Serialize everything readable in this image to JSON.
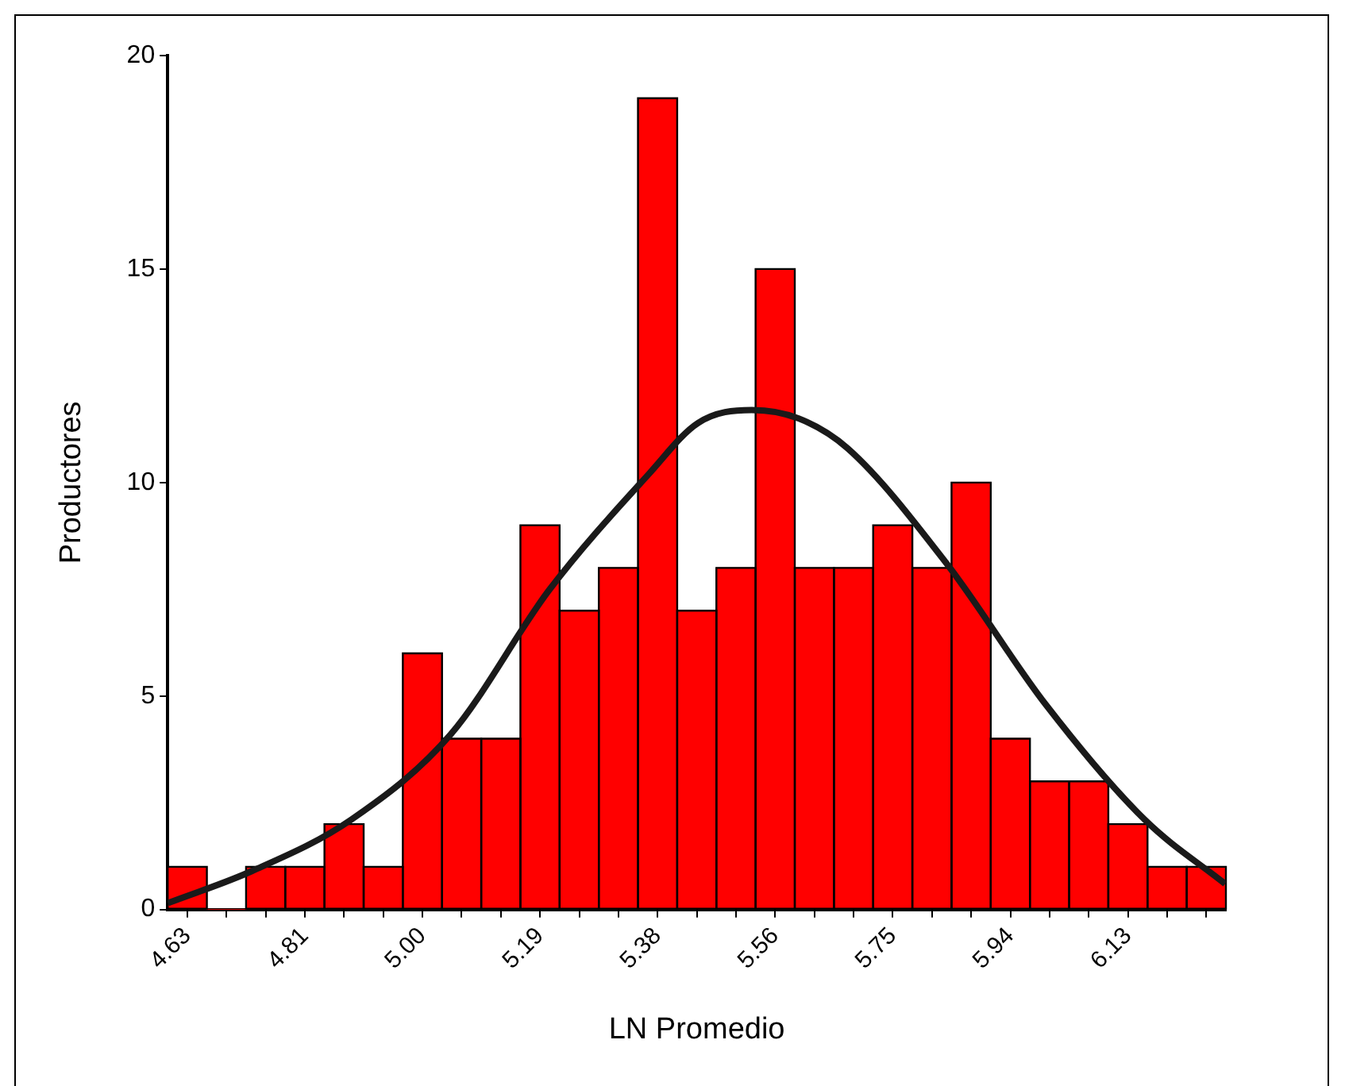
{
  "chart_data": {
    "type": "histogram",
    "xlabel": "LN Promedio",
    "ylabel": "Productores",
    "bins": [
      4.59375,
      4.65625,
      4.71875,
      4.78125,
      4.84375,
      4.90625,
      4.96875,
      5.03125,
      5.09375,
      5.15625,
      5.21875,
      5.28125,
      5.34375,
      5.40625,
      5.46875,
      5.53125,
      5.59375,
      5.65625,
      5.71875,
      5.78125,
      5.84375,
      5.90625,
      5.96875,
      6.03125,
      6.09375,
      6.15625,
      6.21875,
      6.28125
    ],
    "values": [
      1,
      0,
      1,
      1,
      2,
      1,
      6,
      4,
      4,
      9,
      7,
      8,
      19,
      7,
      8,
      15,
      8,
      8,
      9,
      8,
      10,
      4,
      3,
      3,
      2,
      1,
      1
    ],
    "color": "#ff0000",
    "series": [
      {
        "type": "line",
        "color": "#1a1a1a",
        "x": [
          4.594,
          4.728,
          4.886,
          5.045,
          5.203,
          5.361,
          5.44,
          5.525,
          5.6,
          5.678,
          5.836,
          5.994,
          6.152,
          6.28
        ],
        "values": [
          0.15,
          0.9,
          2.1,
          4.1,
          7.5,
          10.2,
          11.4,
          11.7,
          11.5,
          10.8,
          8.1,
          4.8,
          2.1,
          0.6
        ]
      }
    ],
    "xlim": [
      4.59375,
      6.28125
    ],
    "xticks": [
      {
        "value": 4.625,
        "label": "4.63"
      },
      {
        "value": 4.6875,
        "label": null
      },
      {
        "value": 4.75,
        "label": null
      },
      {
        "value": 4.8125,
        "label": "4.81"
      },
      {
        "value": 4.875,
        "label": null
      },
      {
        "value": 4.9375,
        "label": null
      },
      {
        "value": 5.0,
        "label": "5.00"
      },
      {
        "value": 5.0625,
        "label": null
      },
      {
        "value": 5.125,
        "label": null
      },
      {
        "value": 5.1875,
        "label": "5.19"
      },
      {
        "value": 5.25,
        "label": null
      },
      {
        "value": 5.3125,
        "label": null
      },
      {
        "value": 5.375,
        "label": "5.38"
      },
      {
        "value": 5.4375,
        "label": null
      },
      {
        "value": 5.5,
        "label": null
      },
      {
        "value": 5.5625,
        "label": "5.56"
      },
      {
        "value": 5.625,
        "label": null
      },
      {
        "value": 5.6875,
        "label": null
      },
      {
        "value": 5.75,
        "label": "5.75"
      },
      {
        "value": 5.8125,
        "label": null
      },
      {
        "value": 5.875,
        "label": null
      },
      {
        "value": 5.9375,
        "label": "5.94"
      },
      {
        "value": 6.0,
        "label": null
      },
      {
        "value": 6.0625,
        "label": null
      },
      {
        "value": 6.125,
        "label": "6.13"
      },
      {
        "value": 6.1875,
        "label": null
      },
      {
        "value": 6.25,
        "label": null
      }
    ],
    "ylim": [
      0,
      20
    ],
    "yticks": [
      0,
      5,
      10,
      15,
      20
    ],
    "grid": false,
    "legend": false
  }
}
